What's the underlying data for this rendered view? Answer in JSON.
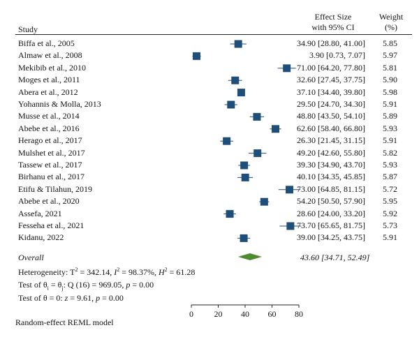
{
  "header": {
    "study": "Study",
    "effect_line1": "Effect Size",
    "effect_line2": "with 95% CI",
    "weight_line1": "Weight",
    "weight_line2": "(%)"
  },
  "overall": {
    "label": "Overall",
    "ci_text": "43.60 [34.71, 52.49]"
  },
  "heterogeneity": {
    "prefix": "Heterogeneity: ",
    "tau_sym": "T",
    "tau_val": " = 342.14, ",
    "i_sym": "I",
    "i_val": " = 98.37%, ",
    "h_sym": "H",
    "h_val": " = 61.28",
    "sup": "2"
  },
  "tests": {
    "homog_prefix": "Test of θ",
    "homog_sub_i": "i",
    "homog_mid": " = θ",
    "homog_sub_j": "j",
    "homog_rest": ": Q (16) = 969.05, ",
    "homog_p": "p",
    "homog_pval": " = 0.00",
    "zero_prefix": "Test of θ = 0: ",
    "zero_z": "z",
    "zero_rest": " = 9.61, ",
    "zero_p": "p",
    "zero_pval": " = 0.00"
  },
  "footer": {
    "model": "Random-effect REML model"
  },
  "chart_data": {
    "type": "forest",
    "xlim": [
      0,
      80
    ],
    "xticks": [
      "0",
      "20",
      "40",
      "60",
      "80"
    ],
    "marker_color": "#1f4e79",
    "diamond_color": "#4e8a2e",
    "studies": [
      {
        "name": "Biffa et al., 2005",
        "es": 34.9,
        "lo": 28.8,
        "hi": 41.0,
        "ci_text": "34.90 [28.80, 41.00]",
        "weight": "5.85"
      },
      {
        "name": "Almaw et al., 2008",
        "es": 3.9,
        "lo": 0.73,
        "hi": 7.07,
        "ci_text": "3.90 [0.73, 7.07]",
        "weight": "5.97"
      },
      {
        "name": "Mekibib et al., 2010",
        "es": 71.0,
        "lo": 64.2,
        "hi": 77.8,
        "ci_text": "71.00 [64.20, 77.80]",
        "weight": "5.81"
      },
      {
        "name": "Moges et al., 2011",
        "es": 32.6,
        "lo": 27.45,
        "hi": 37.75,
        "ci_text": "32.60 [27.45, 37.75]",
        "weight": "5.90"
      },
      {
        "name": "Abera et al., 2012",
        "es": 37.1,
        "lo": 34.4,
        "hi": 39.8,
        "ci_text": "37.10 [34.40, 39.80]",
        "weight": "5.98"
      },
      {
        "name": "Yohannis & Molla, 2013",
        "es": 29.5,
        "lo": 24.7,
        "hi": 34.3,
        "ci_text": "29.50 [24.70, 34.30]",
        "weight": "5.91"
      },
      {
        "name": "Musse et al., 2014",
        "es": 48.8,
        "lo": 43.5,
        "hi": 54.1,
        "ci_text": "48.80 [43.50, 54.10]",
        "weight": "5.89"
      },
      {
        "name": "Abebe et al., 2016",
        "es": 62.6,
        "lo": 58.4,
        "hi": 66.8,
        "ci_text": "62.60 [58.40, 66.80]",
        "weight": "5.93"
      },
      {
        "name": "Herago et al., 2017",
        "es": 26.3,
        "lo": 21.45,
        "hi": 31.15,
        "ci_text": "26.30 [21.45, 31.15]",
        "weight": "5.91"
      },
      {
        "name": "Mulshet et al., 2017",
        "es": 49.2,
        "lo": 42.6,
        "hi": 55.8,
        "ci_text": "49.20 [42.60, 55.80]",
        "weight": "5.82"
      },
      {
        "name": "Tassew et al., 2017",
        "es": 39.3,
        "lo": 34.9,
        "hi": 43.7,
        "ci_text": "39.30 [34.90, 43.70]",
        "weight": "5.93"
      },
      {
        "name": "Birhanu et al., 2017",
        "es": 40.1,
        "lo": 34.35,
        "hi": 45.85,
        "ci_text": "40.10 [34.35, 45.85]",
        "weight": "5.87"
      },
      {
        "name": "Etifu & Tilahun, 2019",
        "es": 73.0,
        "lo": 64.85,
        "hi": 81.15,
        "ci_text": "73.00 [64.85, 81.15]",
        "weight": "5.72"
      },
      {
        "name": "Abebe et al., 2020",
        "es": 54.2,
        "lo": 50.5,
        "hi": 57.9,
        "ci_text": "54.20 [50.50, 57.90]",
        "weight": "5.95"
      },
      {
        "name": "Assefa, 2021",
        "es": 28.6,
        "lo": 24.0,
        "hi": 33.2,
        "ci_text": "28.60 [24.00, 33.20]",
        "weight": "5.92"
      },
      {
        "name": "Fesseha et al., 2021",
        "es": 73.7,
        "lo": 65.65,
        "hi": 81.75,
        "ci_text": "73.70 [65.65, 81.75]",
        "weight": "5.73"
      },
      {
        "name": "Kidanu, 2022",
        "es": 39.0,
        "lo": 34.25,
        "hi": 43.75,
        "ci_text": "39.00 [34.25, 43.75]",
        "weight": "5.91"
      }
    ],
    "pooled": {
      "es": 43.6,
      "lo": 34.71,
      "hi": 52.49
    }
  }
}
